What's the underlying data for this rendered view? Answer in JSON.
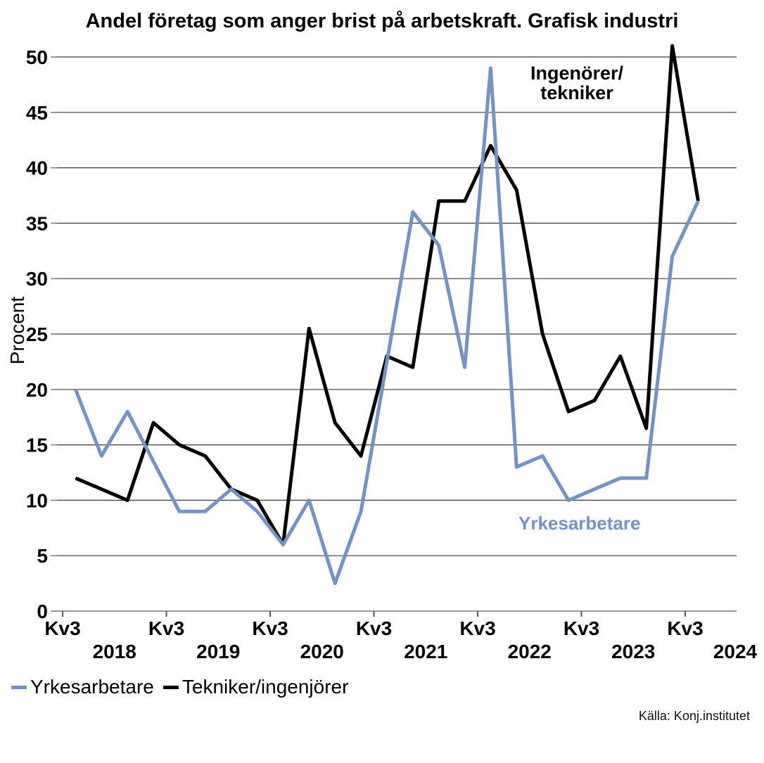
{
  "title": "Andel företag som anger brist på arbetskraft. Grafisk industri",
  "y_axis": {
    "label": "Procent",
    "ticks": [
      0,
      5,
      10,
      15,
      20,
      25,
      30,
      35,
      40,
      45,
      50
    ]
  },
  "x_axis": {
    "quarter_tick_label": "Kv3",
    "years": [
      "2018",
      "2019",
      "2020",
      "2021",
      "2022",
      "2023",
      "2024"
    ]
  },
  "annotations": {
    "engineers_line1": "Ingenörer/",
    "engineers_line2": "tekniker",
    "workers": "Yrkesarbetare"
  },
  "legend": {
    "items": [
      {
        "label": "Yrkesarbetare",
        "color": "#7292C8"
      },
      {
        "label": "Tekniker/ingenjörer",
        "color": "#000000"
      }
    ]
  },
  "source": "Källa: Konj.institutet",
  "colors": {
    "workers_blue": "#7292C8",
    "engineers_black": "#000000",
    "gridline": "#3a3a3a",
    "axis": "#8c8c8c",
    "tick": "#555555"
  },
  "chart_data": {
    "type": "line",
    "x": [
      "Kv3 2017",
      "Kv4 2017",
      "Kv1 2018",
      "Kv2 2018",
      "Kv3 2018",
      "Kv4 2018",
      "Kv1 2019",
      "Kv2 2019",
      "Kv3 2019",
      "Kv4 2019",
      "Kv1 2020",
      "Kv2 2020",
      "Kv3 2020",
      "Kv4 2020",
      "Kv1 2021",
      "Kv2 2021",
      "Kv3 2021",
      "Kv4 2021",
      "Kv1 2022",
      "Kv2 2022",
      "Kv3 2022",
      "Kv4 2022",
      "Kv1 2023",
      "Kv2 2023",
      "Kv3 2023"
    ],
    "series": [
      {
        "name": "Yrkesarbetare",
        "color": "#7292C8",
        "values": [
          20,
          14,
          18,
          13.5,
          9,
          9,
          11,
          9,
          6,
          10,
          2.5,
          9,
          22.5,
          36,
          33,
          22,
          49,
          13,
          14,
          10,
          11,
          12,
          12,
          32,
          37
        ]
      },
      {
        "name": "Tekniker/ingenjörer",
        "color": "#000000",
        "values": [
          12,
          11,
          10,
          17,
          15,
          14,
          11,
          10,
          6,
          25.5,
          17,
          14,
          23,
          22,
          37,
          37,
          42,
          38,
          25,
          18,
          19,
          23,
          16.5,
          51,
          37
        ]
      }
    ],
    "title": "Andel företag som anger brist på arbetskraft. Grafisk industri",
    "xlabel": "",
    "ylabel": "Procent",
    "ylim": [
      0,
      50
    ],
    "grid": true,
    "legend_position": "bottom-left"
  }
}
